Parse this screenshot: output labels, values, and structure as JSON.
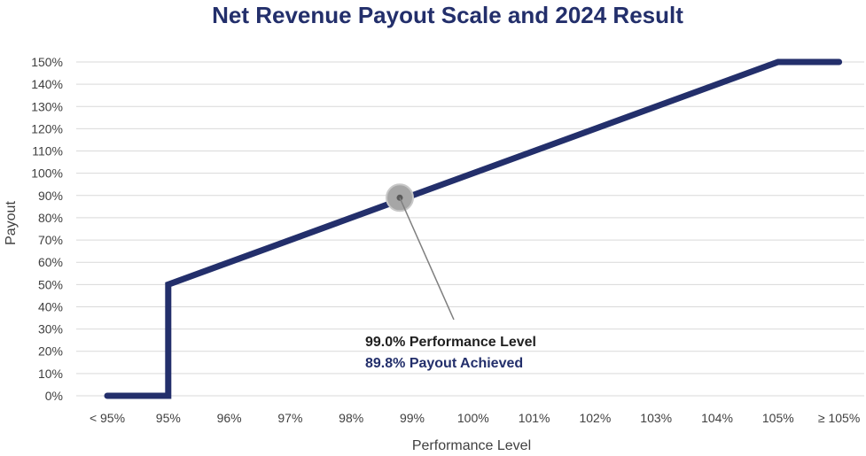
{
  "chart_data": {
    "type": "line",
    "title": "Net Revenue Payout Scale and 2024 Result",
    "xlabel": "Performance Level",
    "ylabel": "Payout",
    "categories": [
      "< 95%",
      "95%",
      "96%",
      "97%",
      "98%",
      "99%",
      "100%",
      "101%",
      "102%",
      "103%",
      "104%",
      "105%",
      "≥ 105%"
    ],
    "yticks": [
      "0%",
      "10%",
      "20%",
      "30%",
      "40%",
      "50%",
      "60%",
      "70%",
      "80%",
      "90%",
      "100%",
      "110%",
      "120%",
      "130%",
      "140%",
      "150%"
    ],
    "ylim": [
      0,
      150
    ],
    "grid": true,
    "series": [
      {
        "points": [
          {
            "x": 94,
            "y": 0
          },
          {
            "x": 95,
            "y": 0
          },
          {
            "x": 95,
            "y": 50
          },
          {
            "x": 105,
            "y": 150
          },
          {
            "x": 106,
            "y": 150
          }
        ]
      }
    ],
    "highlight": {
      "x": 99.0,
      "y": 89.8,
      "line1": "99.0% Performance Level",
      "line2": "89.8% Payout Achieved"
    },
    "colors": {
      "line": "#232f6b",
      "title": "#232f6b",
      "grid": "#d9d9d9",
      "marker": "#a6a6a6",
      "payout_text": "#232f6b"
    }
  }
}
